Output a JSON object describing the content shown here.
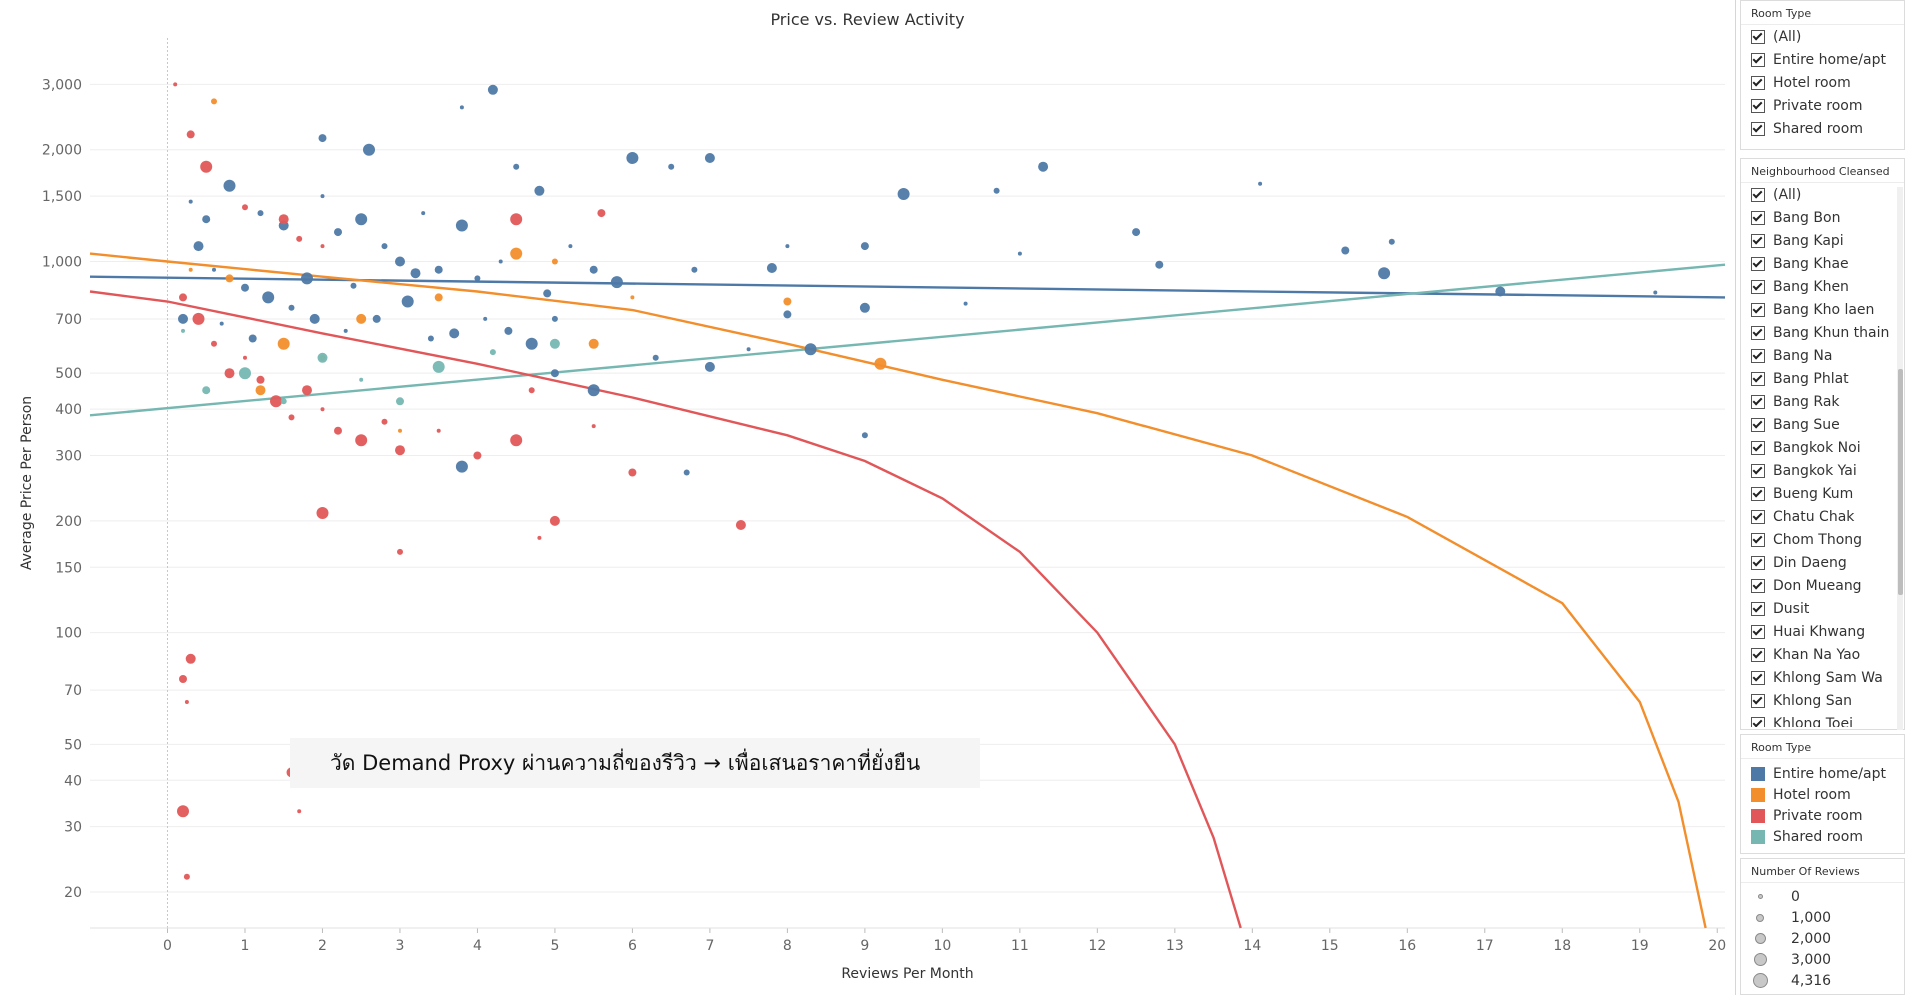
{
  "chart_data": {
    "type": "scatter",
    "title": "Price vs. Review Activity",
    "xlabel": "Reviews Per Month",
    "ylabel": "Average Price Per Person",
    "x_ticks": [
      0,
      1,
      2,
      3,
      4,
      5,
      6,
      7,
      8,
      9,
      10,
      11,
      12,
      13,
      14,
      15,
      16,
      17,
      18,
      19,
      20
    ],
    "y_ticks": [
      "20",
      "30",
      "40",
      "50",
      "70",
      "100",
      "150",
      "200",
      "300",
      "400",
      "500",
      "700",
      "1,000",
      "1,500",
      "2,000",
      "3,000"
    ],
    "xlim": [
      -1,
      20.1
    ],
    "ylim": [
      16,
      4000
    ],
    "y_scale": "log",
    "grid": true,
    "legend": "right",
    "series": [
      {
        "name": "Entire home/apt",
        "color": "#4e79a7",
        "points": [
          [
            0.3,
            1450
          ],
          [
            0.5,
            1300
          ],
          [
            0.8,
            1600
          ],
          [
            1.2,
            1350
          ],
          [
            1.5,
            1250
          ],
          [
            2.0,
            1500
          ],
          [
            2.2,
            1200
          ],
          [
            2.5,
            1300
          ],
          [
            2.8,
            1100
          ],
          [
            3.0,
            1000
          ],
          [
            3.3,
            1350
          ],
          [
            3.5,
            950
          ],
          [
            3.8,
            1250
          ],
          [
            4.0,
            900
          ],
          [
            4.2,
            2900
          ],
          [
            3.8,
            2600
          ],
          [
            2.0,
            2150
          ],
          [
            2.6,
            2000
          ],
          [
            4.5,
            1800
          ],
          [
            4.8,
            1550
          ],
          [
            5.2,
            1100
          ],
          [
            5.5,
            950
          ],
          [
            6.0,
            1900
          ],
          [
            6.5,
            1800
          ],
          [
            7.0,
            1900
          ],
          [
            8.0,
            1100
          ],
          [
            9.0,
            1100
          ],
          [
            9.5,
            1520
          ],
          [
            10.7,
            1550
          ],
          [
            11.3,
            1800
          ],
          [
            14.1,
            1620
          ],
          [
            15.2,
            1070
          ],
          [
            15.7,
            930
          ],
          [
            15.8,
            1130
          ],
          [
            17.2,
            830
          ],
          [
            19.2,
            825
          ],
          [
            5.0,
            500
          ],
          [
            5.5,
            450
          ],
          [
            6.3,
            550
          ],
          [
            7.0,
            520
          ],
          [
            7.5,
            580
          ],
          [
            8.0,
            720
          ],
          [
            8.3,
            580
          ],
          [
            9.0,
            340
          ],
          [
            9.0,
            750
          ],
          [
            10.3,
            770
          ],
          [
            12.5,
            1200
          ],
          [
            3.8,
            280
          ],
          [
            6.7,
            270
          ],
          [
            0.4,
            1100
          ],
          [
            0.6,
            950
          ],
          [
            1.0,
            850
          ],
          [
            1.3,
            800
          ],
          [
            1.6,
            750
          ],
          [
            1.9,
            700
          ],
          [
            2.3,
            650
          ],
          [
            2.7,
            700
          ],
          [
            3.1,
            780
          ],
          [
            3.4,
            620
          ],
          [
            3.7,
            640
          ],
          [
            4.1,
            700
          ],
          [
            4.4,
            650
          ],
          [
            4.7,
            600
          ],
          [
            5.0,
            700
          ],
          [
            0.2,
            700
          ],
          [
            0.7,
            680
          ],
          [
            1.1,
            620
          ],
          [
            1.8,
            900
          ],
          [
            2.4,
            860
          ],
          [
            3.2,
            930
          ],
          [
            4.3,
            1000
          ],
          [
            4.9,
            820
          ],
          [
            5.8,
            880
          ],
          [
            6.8,
            950
          ],
          [
            7.8,
            960
          ],
          [
            11.0,
            1050
          ],
          [
            12.8,
            980
          ]
        ]
      },
      {
        "name": "Hotel room",
        "color": "#f28e2b",
        "points": [
          [
            0.3,
            950
          ],
          [
            0.8,
            900
          ],
          [
            1.5,
            600
          ],
          [
            2.0,
            550
          ],
          [
            2.5,
            700
          ],
          [
            3.0,
            350
          ],
          [
            3.5,
            800
          ],
          [
            4.5,
            1050
          ],
          [
            5.0,
            1000
          ],
          [
            5.5,
            600
          ],
          [
            6.0,
            800
          ],
          [
            8.0,
            780
          ],
          [
            9.2,
            530
          ],
          [
            0.6,
            2700
          ],
          [
            1.2,
            450
          ]
        ]
      },
      {
        "name": "Private room",
        "color": "#e15759",
        "points": [
          [
            0.1,
            3000
          ],
          [
            0.3,
            2200
          ],
          [
            0.5,
            1800
          ],
          [
            1.0,
            1400
          ],
          [
            1.5,
            1300
          ],
          [
            2.0,
            1100
          ],
          [
            0.2,
            800
          ],
          [
            0.4,
            700
          ],
          [
            0.6,
            600
          ],
          [
            0.8,
            500
          ],
          [
            1.0,
            550
          ],
          [
            1.2,
            480
          ],
          [
            1.4,
            420
          ],
          [
            1.6,
            380
          ],
          [
            1.8,
            450
          ],
          [
            2.0,
            400
          ],
          [
            2.2,
            350
          ],
          [
            2.5,
            330
          ],
          [
            2.8,
            370
          ],
          [
            3.0,
            310
          ],
          [
            3.5,
            350
          ],
          [
            4.0,
            300
          ],
          [
            4.5,
            330
          ],
          [
            4.7,
            450
          ],
          [
            5.0,
            200
          ],
          [
            5.5,
            360
          ],
          [
            6.0,
            270
          ],
          [
            2.0,
            210
          ],
          [
            3.0,
            165
          ],
          [
            7.4,
            195
          ],
          [
            4.8,
            180
          ],
          [
            5.6,
            1350
          ],
          [
            4.5,
            1300
          ],
          [
            1.7,
            1150
          ],
          [
            0.3,
            85
          ],
          [
            0.25,
            65
          ],
          [
            0.2,
            75
          ],
          [
            0.2,
            33
          ],
          [
            0.25,
            22
          ],
          [
            1.6,
            42
          ],
          [
            1.7,
            33
          ]
        ]
      },
      {
        "name": "Shared room",
        "color": "#76b7b2",
        "points": [
          [
            0.2,
            650
          ],
          [
            0.5,
            450
          ],
          [
            1.0,
            500
          ],
          [
            1.5,
            420
          ],
          [
            2.0,
            550
          ],
          [
            2.5,
            480
          ],
          [
            3.0,
            420
          ],
          [
            3.5,
            520
          ],
          [
            4.2,
            570
          ],
          [
            5.0,
            600
          ]
        ]
      }
    ],
    "trend_lines": [
      {
        "series": "Entire home/apt",
        "points": [
          [
            -1,
            910
          ],
          [
            20.1,
            800
          ]
        ]
      },
      {
        "series": "Shared room",
        "points": [
          [
            -1,
            385
          ],
          [
            20.1,
            980
          ]
        ]
      },
      {
        "series": "Hotel room",
        "points": [
          [
            -1,
            1050
          ],
          [
            0,
            1000
          ],
          [
            2,
            910
          ],
          [
            4,
            830
          ],
          [
            6,
            740
          ],
          [
            8,
            600
          ],
          [
            10,
            480
          ],
          [
            12,
            390
          ],
          [
            14,
            300
          ],
          [
            16,
            205
          ],
          [
            18,
            120
          ],
          [
            19,
            65
          ],
          [
            19.5,
            35
          ],
          [
            19.85,
            16
          ]
        ]
      },
      {
        "series": "Private room",
        "points": [
          [
            -1,
            830
          ],
          [
            0,
            780
          ],
          [
            2,
            640
          ],
          [
            4,
            530
          ],
          [
            6,
            430
          ],
          [
            8,
            340
          ],
          [
            9,
            290
          ],
          [
            10,
            230
          ],
          [
            11,
            165
          ],
          [
            12,
            100
          ],
          [
            13,
            50
          ],
          [
            13.5,
            28
          ],
          [
            13.85,
            16
          ]
        ]
      }
    ]
  },
  "annotation": "วัด Demand Proxy ผ่านความถี่ของรีวิว → เพื่อเสนอราคาที่ยั่งยืน",
  "room_type_filter": {
    "title": "Room Type",
    "items": [
      "(All)",
      "Entire home/apt",
      "Hotel room",
      "Private room",
      "Shared room"
    ]
  },
  "neighbourhood_filter": {
    "title": "Neighbourhood Cleansed",
    "items": [
      "(All)",
      "Bang Bon",
      "Bang Kapi",
      "Bang Khae",
      "Bang Khen",
      "Bang Kho laen",
      "Bang Khun thain",
      "Bang Na",
      "Bang Phlat",
      "Bang Rak",
      "Bang Sue",
      "Bangkok Noi",
      "Bangkok Yai",
      "Bueng Kum",
      "Chatu Chak",
      "Chom Thong",
      "Din Daeng",
      "Don Mueang",
      "Dusit",
      "Huai Khwang",
      "Khan Na Yao",
      "Khlong Sam Wa",
      "Khlong San",
      "Khlong Toei"
    ]
  },
  "color_legend": {
    "title": "Room Type",
    "items": [
      {
        "label": "Entire home/apt",
        "color": "#4e79a7"
      },
      {
        "label": "Hotel room",
        "color": "#f28e2b"
      },
      {
        "label": "Private room",
        "color": "#e15759"
      },
      {
        "label": "Shared room",
        "color": "#76b7b2"
      }
    ]
  },
  "size_legend": {
    "title": "Number Of Reviews",
    "items": [
      "0",
      "1,000",
      "2,000",
      "3,000",
      "4,316"
    ]
  }
}
